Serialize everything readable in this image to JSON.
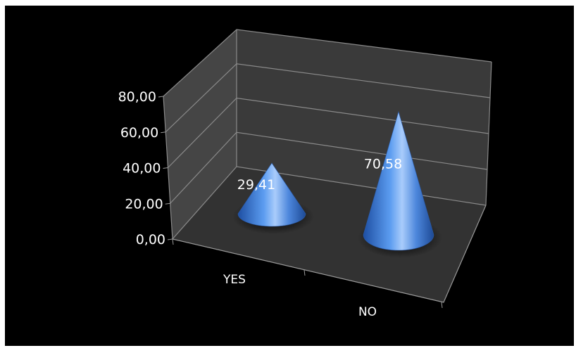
{
  "chart_data": {
    "type": "bar",
    "style": "3d-cone",
    "categories": [
      "YES",
      "NO"
    ],
    "values": [
      29.41,
      70.58
    ],
    "data_labels": [
      "29,41",
      "70,58"
    ],
    "yticks": [
      "0,00",
      "20,00",
      "40,00",
      "60,00",
      "80,00"
    ],
    "ylim": [
      0,
      80
    ],
    "grid": true,
    "legend": "none",
    "colors": {
      "background": "#000000",
      "wall": "#3b3b3b",
      "floor": "#333333",
      "gridline": "#8a8a8a",
      "series": "#3f7fd6"
    }
  }
}
